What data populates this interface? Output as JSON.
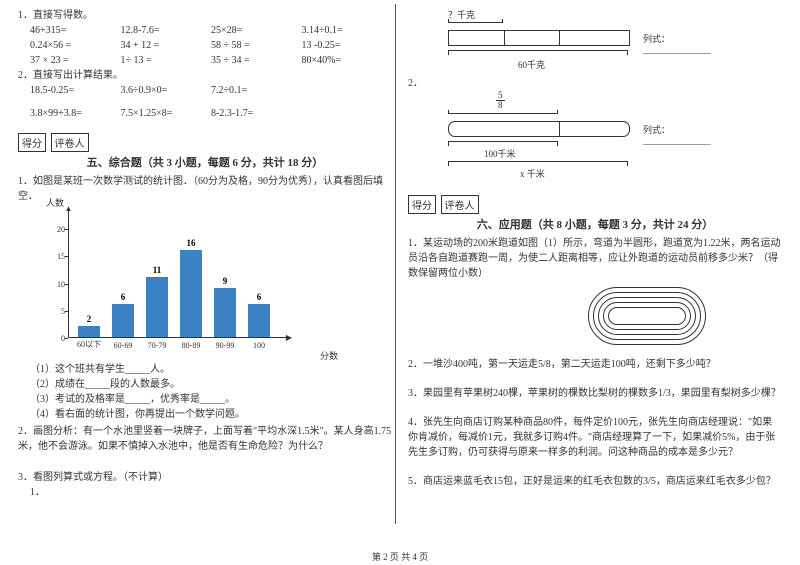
{
  "left": {
    "q1_title": "1．直接写得数。",
    "q1_rows": [
      [
        "46+315=",
        "12.8-7.6=",
        "25×28=",
        "3.14÷0.1="
      ],
      [
        "0.24×56 =",
        "34 + 12 =",
        "58 ÷ 58 =",
        "13 -0.25="
      ],
      [
        "37 × 23 =",
        "1÷ 13 =",
        "35 ÷ 34 =",
        "80×40%="
      ]
    ],
    "q2_title": "2．直接写出计算结果。",
    "q2_rows": [
      [
        "18.5-0.25=",
        "3.6÷0.9×0=",
        "7.2÷0.1="
      ],
      [
        "3.8×99+3.8=",
        "7.5×1.25×8=",
        "8-2.3-1.7="
      ]
    ],
    "score_a": "得分",
    "score_b": "评卷人",
    "sec5_title": "五、综合题（共 3 小题，每题 6 分，共计 18 分）",
    "chart_intro": "1．如图是某班一次数学测试的统计图．（60分为及格，90分为优秀），认真看图后填空．",
    "chart": {
      "y_label": "人数",
      "x_label": "分数",
      "y_max": 20,
      "y_step": 5,
      "unit_h": 5.45,
      "categories": [
        "60以下",
        "60-69",
        "70-79",
        "80-89",
        "90-99",
        "100"
      ],
      "values": [
        2,
        6,
        11,
        16,
        9,
        6
      ],
      "bar_color": "#3b82c4"
    },
    "chart_q1": "（1）这个班共有学生_____人。",
    "chart_q2": "（2）成绩在_____段的人数最多。",
    "chart_q3": "（3）考试的及格率是_____，优秀率是_____。",
    "chart_q4": "（4）看右面的统计图，你再提出一个数学问题。",
    "q2p": "2．画图分析：有一个水池里竖着一块牌子，上面写着\"平均水深1.5米\"。某人身高1.75米，他不会游泳。如果不慎掉入水池中，他是否有生命危险？为什么？",
    "q3p": "3．看图列算式或方程。（不计算）",
    "q3p1": "1．"
  },
  "right": {
    "m1_top": "？千克",
    "m1_right": "列式：_______________",
    "m1_bottom": "60千克",
    "m2_label": "2．",
    "m2_frac_n": "5",
    "m2_frac_d": "8",
    "m2_right": "列式：_______________",
    "m2_mid": "100千米",
    "m2_bot": "x 千米",
    "score_a": "得分",
    "score_b": "评卷人",
    "sec6_title": "六、应用题（共 8 小题，每题 3 分，共计 24 分）",
    "a1": "1．某运动场的200米跑道如图（1）所示，弯道为半圆形，跑道宽为1.22米，两名运动员沿各自跑道赛跑一周，为使二人距离相等，应让外跑道的运动员前移多少米？（得数保留两位小数）",
    "a2": "2．一堆沙400吨，第一天运走5/8，第二天运走100吨，还剩下多少吨？",
    "a3": "3．果园里有苹果树240棵，苹果树的棵数比梨树的棵数多1/3，果园里有梨树多少棵？",
    "a4": "4．张先生向商店订购某种商品80件，每件定价100元，张先生向商店经理说：\"如果你肯减价，每减价1元，我就多订购4件。\"商店经理算了一下，如果减价5%，由于张先生多订购，仍可获得与原来一样多的利润。问这种商品的成本是多少元？",
    "a5": "5．商店运来蓝毛衣15包，正好是运来的红毛衣包数的3/5，商店运来红毛衣多少包？"
  },
  "footer": "第 2 页 共 4 页"
}
